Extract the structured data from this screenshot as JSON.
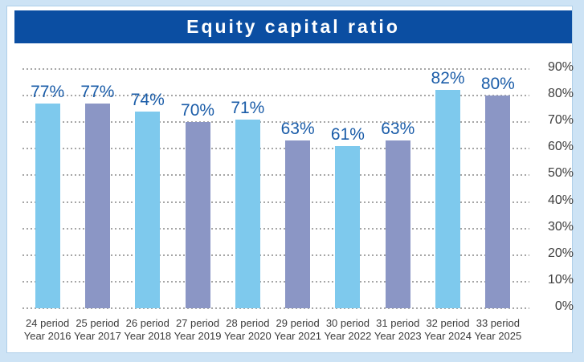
{
  "header": {
    "title": "Equity capital ratio"
  },
  "colors": {
    "page_bg": "#CDE3F5",
    "panel_bg": "#FFFFFF",
    "panel_border": "#AFCFE9",
    "title_bg": "#0B4EA2",
    "title_text": "#FFFFFF",
    "bar_light_blue": "#7EC9ED",
    "bar_gray_blue": "#8B96C5",
    "value_label": "#1A5CA8",
    "axis_label": "#3C3C3C",
    "gridline": "#A6A6A6"
  },
  "chart_data": {
    "type": "bar",
    "title": "Equity capital ratio",
    "categories": [
      {
        "line1": "24 period",
        "line2": "Year 2016"
      },
      {
        "line1": "25 period",
        "line2": "Year 2017"
      },
      {
        "line1": "26 period",
        "line2": "Year 2018"
      },
      {
        "line1": "27 period",
        "line2": "Year 2019"
      },
      {
        "line1": "28 period",
        "line2": "Year 2020"
      },
      {
        "line1": "29 period",
        "line2": "Year 2021"
      },
      {
        "line1": "30 period",
        "line2": "Year 2022"
      },
      {
        "line1": "31 period",
        "line2": "Year 2023"
      },
      {
        "line1": "32 period",
        "line2": "Year 2024"
      },
      {
        "line1": "33 period",
        "line2": "Year 2025"
      }
    ],
    "values": [
      77,
      77,
      74,
      70,
      71,
      63,
      61,
      63,
      82,
      80
    ],
    "value_labels": [
      "77%",
      "77%",
      "74%",
      "70%",
      "71%",
      "63%",
      "61%",
      "63%",
      "82%",
      "80%"
    ],
    "bar_colors": [
      "#7EC9ED",
      "#8B96C5",
      "#7EC9ED",
      "#8B96C5",
      "#7EC9ED",
      "#8B96C5",
      "#7EC9ED",
      "#8B96C5",
      "#7EC9ED",
      "#8B96C5"
    ],
    "xlabel": "",
    "ylabel": "",
    "ylim": [
      0,
      90
    ],
    "yticks": [
      {
        "value": 0,
        "label": "0%"
      },
      {
        "value": 10,
        "label": "10%"
      },
      {
        "value": 20,
        "label": "20%"
      },
      {
        "value": 30,
        "label": "30%"
      },
      {
        "value": 40,
        "label": "40%"
      },
      {
        "value": 50,
        "label": "50%"
      },
      {
        "value": 60,
        "label": "60%"
      },
      {
        "value": 70,
        "label": "70%"
      },
      {
        "value": 80,
        "label": "80%"
      },
      {
        "value": 90,
        "label": "90%"
      }
    ],
    "grid": "horizontal-dotted",
    "legend": "none",
    "y_axis_position": "right"
  }
}
